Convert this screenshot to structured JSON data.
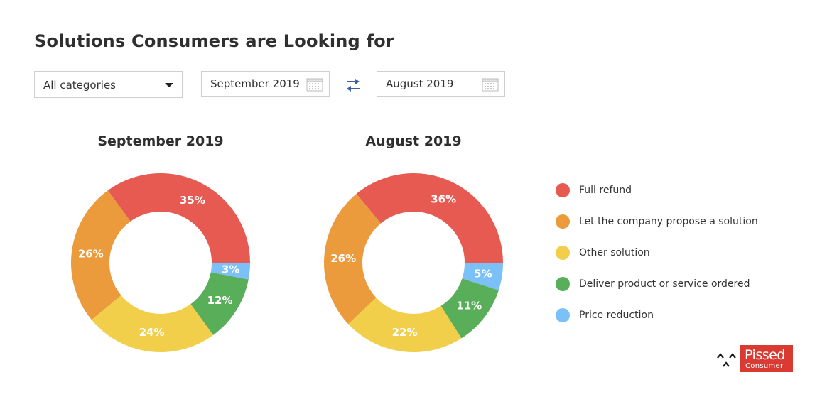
{
  "title": "Solutions Consumers are Looking for",
  "controls": {
    "category_select": "All categories",
    "date_from": "September 2019",
    "date_to": "August 2019"
  },
  "colors": {
    "Full refund": "#e65a51",
    "Let the company propose a solution": "#eb9a3c",
    "Other solution": "#f2cf4a",
    "Deliver product or service ordered": "#59ae5a",
    "Price reduction": "#7cc0f8"
  },
  "legend": [
    {
      "label": "Full refund",
      "color": "#e65a51"
    },
    {
      "label": "Let the company propose a solution",
      "color": "#eb9a3c"
    },
    {
      "label": "Other solution",
      "color": "#f2cf4a"
    },
    {
      "label": "Deliver product or service ordered",
      "color": "#59ae5a"
    },
    {
      "label": "Price reduction",
      "color": "#7cc0f8"
    }
  ],
  "chart_data": [
    {
      "type": "pie",
      "title": "September 2019",
      "categories": [
        "Price reduction",
        "Deliver product or service ordered",
        "Other solution",
        "Let the company propose a solution",
        "Full refund"
      ],
      "values": [
        3,
        12,
        24,
        26,
        35
      ],
      "labels": [
        "3%",
        "12%",
        "24%",
        "26%",
        "35%"
      ],
      "legend_position": "right"
    },
    {
      "type": "pie",
      "title": "August 2019",
      "categories": [
        "Price reduction",
        "Deliver product or service ordered",
        "Other solution",
        "Let the company propose a solution",
        "Full refund"
      ],
      "values": [
        5,
        11,
        22,
        26,
        36
      ],
      "labels": [
        "5%",
        "11%",
        "22%",
        "26%",
        "36%"
      ],
      "legend_position": "right"
    }
  ],
  "logo": {
    "main": "Pissed",
    "sub": "Consumer",
    "icon": "face-icon"
  }
}
